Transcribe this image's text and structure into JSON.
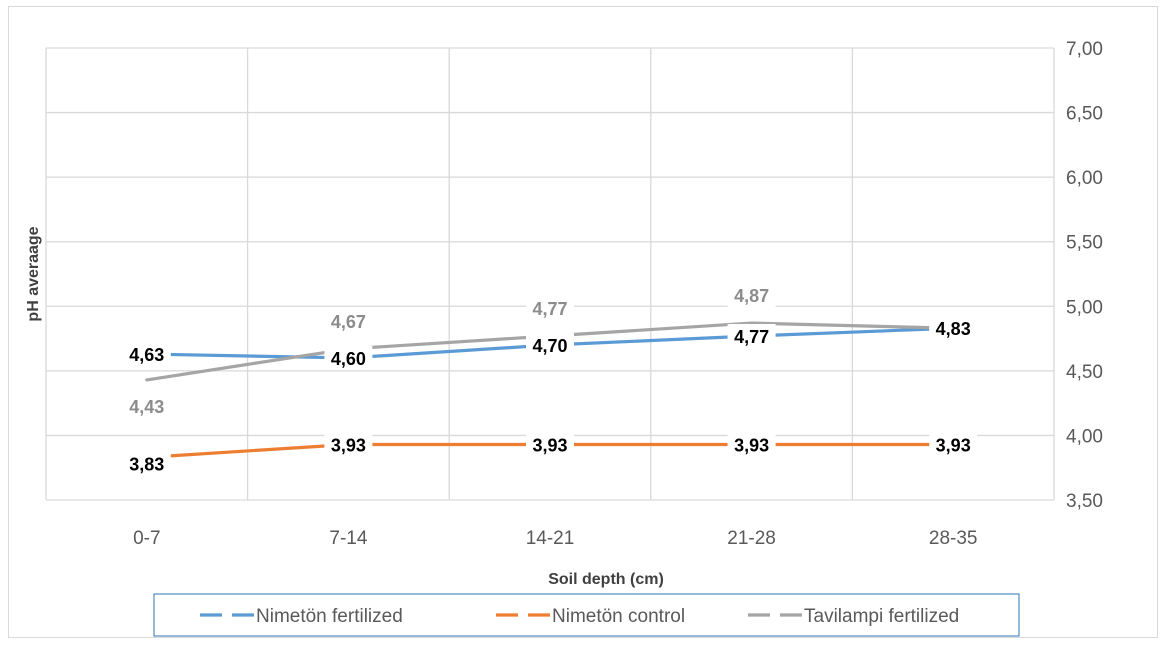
{
  "chart_data": {
    "type": "line",
    "title": "",
    "xlabel": "Soil depth (cm)",
    "ylabel": "pH averaage",
    "categories": [
      "0-7",
      "7-14",
      "14-21",
      "21-28",
      "28-35"
    ],
    "ylim": [
      3.5,
      7.0
    ],
    "yticks": [
      "3,50",
      "4,00",
      "4,50",
      "5,00",
      "5,50",
      "6,00",
      "6,50",
      "7,00"
    ],
    "y_axis_side": "right",
    "grid": true,
    "legend_position": "bottom",
    "series": [
      {
        "name": "Nimetön fertilized",
        "color": "#5b9bd5",
        "values": [
          4.63,
          4.6,
          4.7,
          4.77,
          4.83
        ],
        "labels": [
          "4,63",
          "4,60",
          "4,70",
          "4,77",
          "4,83"
        ],
        "label_color": "#000000"
      },
      {
        "name": "Nimetön control",
        "color": "#ed7d31",
        "values": [
          3.83,
          3.93,
          3.93,
          3.93,
          3.93
        ],
        "labels": [
          "3,83",
          "3,93",
          "3,93",
          "3,93",
          "3,93"
        ],
        "label_color": "#000000"
      },
      {
        "name": "Tavilampi fertilized",
        "color": "#a5a5a5",
        "values": [
          4.43,
          4.67,
          4.77,
          4.87,
          4.83
        ],
        "labels": [
          "4,43",
          "4,67",
          "4,77",
          "4,87",
          ""
        ],
        "label_color": "#8c8c8c"
      }
    ]
  }
}
